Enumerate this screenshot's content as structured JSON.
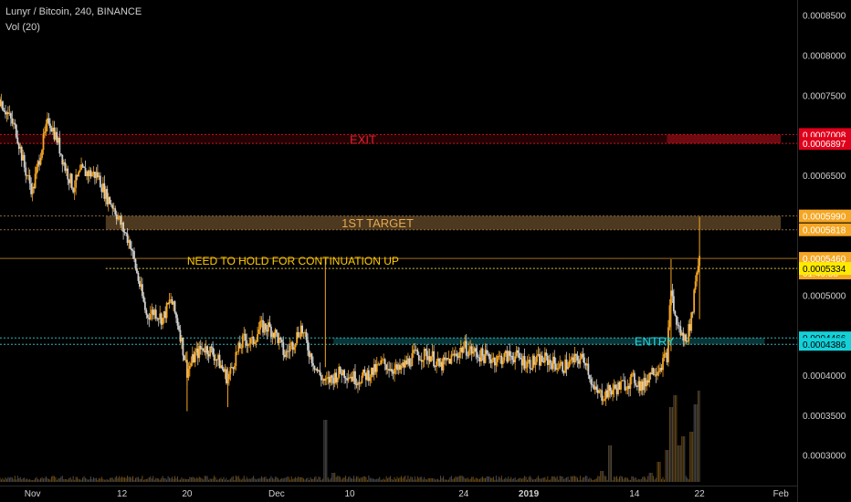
{
  "header": {
    "title": "Lunyr / Bitcoin, 240, BINANCE",
    "volume": "Vol (20)"
  },
  "colors": {
    "background": "#000000",
    "up_candle": "#f5a623",
    "down_candle": "#d0d0d0",
    "exit_zone": "#c8141e",
    "target_zone": "#8a6a3c",
    "entry_zone": "#2fb3b8",
    "hold_line": "#d8c04a",
    "axis_text": "#d0d0d0"
  },
  "chart_data": {
    "type": "candlestick",
    "x_axis": {
      "tick_labels": [
        "Nov",
        "12",
        "20",
        "Dec",
        "10",
        "24",
        "2019",
        "14",
        "22",
        "Feb"
      ],
      "tick_dates": [
        "2018-11-01",
        "2018-11-12",
        "2018-11-20",
        "2018-12-01",
        "2018-12-10",
        "2018-12-24",
        "2019-01-01",
        "2019-01-14",
        "2019-01-22",
        "2019-02-01"
      ],
      "range": [
        "2018-10-28",
        "2019-02-03"
      ]
    },
    "y_axis": {
      "range": [
        0.000262,
        0.000869
      ],
      "tick_labels": [
        "0.0003000",
        "0.0003500",
        "0.0004000",
        "0.0004500",
        "0.0005000",
        "0.0005500",
        "0.0006000",
        "0.0006500",
        "0.0007000",
        "0.0007500",
        "0.0008000",
        "0.0008500"
      ],
      "tick_values": [
        0.0003,
        0.00035,
        0.0004,
        0.00045,
        0.0005,
        0.00055,
        0.0006,
        0.00065,
        0.0007,
        0.00075,
        0.0008,
        0.00085
      ]
    },
    "price_labels": [
      {
        "text": "0.0007008",
        "value": 0.0007008,
        "color": "#e0001b"
      },
      {
        "text": "0.0006897",
        "value": 0.0006897,
        "color": "#e0001b"
      },
      {
        "text": "0.0005990",
        "value": 0.000599,
        "color": "#f5a623"
      },
      {
        "text": "0.0005818",
        "value": 0.0005818,
        "color": "#f5a623"
      },
      {
        "text": "0.0005460",
        "value": 0.000546,
        "color": "#f5a623"
      },
      {
        "text": "01:40:58",
        "value": 0.000539,
        "color": "#f5a623"
      },
      {
        "text": "0.0005334",
        "value": 0.0005334,
        "color": "#ffeb00"
      },
      {
        "text": "0.0004466",
        "value": 0.0004466,
        "color": "#13d1d9"
      },
      {
        "text": "0.0004386",
        "value": 0.0004386,
        "color": "#13d1d9"
      }
    ],
    "zones": [
      {
        "label": "EXIT",
        "top": 0.0007008,
        "bottom": 0.0006897,
        "from": "2018-10-28",
        "to": "2019-02-01"
      },
      {
        "label": "1ST TARGET",
        "top": 0.000599,
        "bottom": 0.0005818,
        "from": "2018-11-10",
        "to": "2019-02-01"
      },
      {
        "label": "ENTRY",
        "top": 0.0004466,
        "bottom": 0.0004386,
        "from": "2018-12-08",
        "to": "2019-01-30"
      }
    ],
    "annotations": [
      {
        "text": "NEED TO HOLD FOR CONTINUATION UP",
        "value": 0.0005334
      }
    ],
    "price_path": [
      [
        "2018-10-28",
        0.000745
      ],
      [
        "2018-10-30",
        0.000705
      ],
      [
        "2018-10-31",
        0.00066
      ],
      [
        "2018-11-01",
        0.00063
      ],
      [
        "2018-11-02",
        0.00068
      ],
      [
        "2018-11-03",
        0.00072
      ],
      [
        "2018-11-04",
        0.000695
      ],
      [
        "2018-11-05",
        0.00066
      ],
      [
        "2018-11-06",
        0.000635
      ],
      [
        "2018-11-07",
        0.000655
      ],
      [
        "2018-11-09",
        0.00065
      ],
      [
        "2018-11-10",
        0.000625
      ],
      [
        "2018-11-11",
        0.00061
      ],
      [
        "2018-11-12",
        0.000585
      ],
      [
        "2018-11-13",
        0.000565
      ],
      [
        "2018-11-14",
        0.00052
      ],
      [
        "2018-11-15",
        0.000475
      ],
      [
        "2018-11-16",
        0.00048
      ],
      [
        "2018-11-17",
        0.00047
      ],
      [
        "2018-11-18",
        0.000495
      ],
      [
        "2018-11-19",
        0.00046
      ],
      [
        "2018-11-20",
        0.000405
      ],
      [
        "2018-11-21",
        0.000425
      ],
      [
        "2018-11-22",
        0.000435
      ],
      [
        "2018-11-23",
        0.00043
      ],
      [
        "2018-11-24",
        0.000415
      ],
      [
        "2018-11-25",
        0.000395
      ],
      [
        "2018-11-26",
        0.000425
      ],
      [
        "2018-11-27",
        0.000445
      ],
      [
        "2018-11-28",
        0.00044
      ],
      [
        "2018-11-29",
        0.00046
      ],
      [
        "2018-11-30",
        0.00046
      ],
      [
        "2018-12-01",
        0.00045
      ],
      [
        "2018-12-02",
        0.000425
      ],
      [
        "2018-12-03",
        0.00044
      ],
      [
        "2018-12-04",
        0.00046
      ],
      [
        "2018-12-05",
        0.00043
      ],
      [
        "2018-12-06",
        0.000405
      ],
      [
        "2018-12-07",
        0.00039
      ],
      [
        "2018-12-09",
        0.000405
      ],
      [
        "2018-12-11",
        0.000395
      ],
      [
        "2018-12-13",
        0.000405
      ],
      [
        "2018-12-14",
        0.000415
      ],
      [
        "2018-12-16",
        0.000405
      ],
      [
        "2018-12-18",
        0.000425
      ],
      [
        "2018-12-20",
        0.000425
      ],
      [
        "2018-12-21",
        0.00041
      ],
      [
        "2018-12-23",
        0.000425
      ],
      [
        "2018-12-24",
        0.000435
      ],
      [
        "2018-12-26",
        0.000425
      ],
      [
        "2018-12-28",
        0.00042
      ],
      [
        "2018-12-30",
        0.000425
      ],
      [
        "2019-01-01",
        0.000415
      ],
      [
        "2019-01-03",
        0.00042
      ],
      [
        "2019-01-05",
        0.00041
      ],
      [
        "2019-01-07",
        0.00042
      ],
      [
        "2019-01-08",
        0.00042
      ],
      [
        "2019-01-09",
        0.00038
      ],
      [
        "2019-01-10",
        0.000375
      ],
      [
        "2019-01-12",
        0.000385
      ],
      [
        "2019-01-14",
        0.000395
      ],
      [
        "2019-01-15",
        0.000385
      ],
      [
        "2019-01-16",
        0.000405
      ],
      [
        "2019-01-17",
        0.00041
      ],
      [
        "2019-01-18",
        0.000425
      ],
      [
        "2019-01-18T12",
        0.00051
      ],
      [
        "2019-01-19",
        0.00047
      ],
      [
        "2019-01-20",
        0.000445
      ],
      [
        "2019-01-20T12",
        0.00045
      ],
      [
        "2019-01-21",
        0.00047
      ],
      [
        "2019-01-21T12",
        0.00052
      ],
      [
        "2019-01-22",
        0.00055
      ],
      [
        "2019-01-22T02",
        0.0005334
      ]
    ],
    "volume_spikes": [
      [
        "2018-11-01",
        0.02
      ],
      [
        "2018-11-05",
        0.03
      ],
      [
        "2018-11-20",
        0.03
      ],
      [
        "2018-12-04",
        0.05
      ],
      [
        "2018-12-07",
        0.68
      ],
      [
        "2018-12-08",
        0.1
      ],
      [
        "2018-12-20",
        0.04
      ],
      [
        "2018-12-27",
        0.06
      ],
      [
        "2019-01-04",
        0.06
      ],
      [
        "2019-01-10",
        0.12
      ],
      [
        "2019-01-11",
        0.4
      ],
      [
        "2019-01-16",
        0.1
      ],
      [
        "2019-01-17",
        0.22
      ],
      [
        "2019-01-18",
        0.35
      ],
      [
        "2019-01-18T12",
        0.82
      ],
      [
        "2019-01-19",
        0.95
      ],
      [
        "2019-01-19T12",
        0.4
      ],
      [
        "2019-01-20",
        0.5
      ],
      [
        "2019-01-21",
        0.55
      ],
      [
        "2019-01-21T12",
        0.85
      ],
      [
        "2019-01-22",
        1.0
      ]
    ]
  }
}
